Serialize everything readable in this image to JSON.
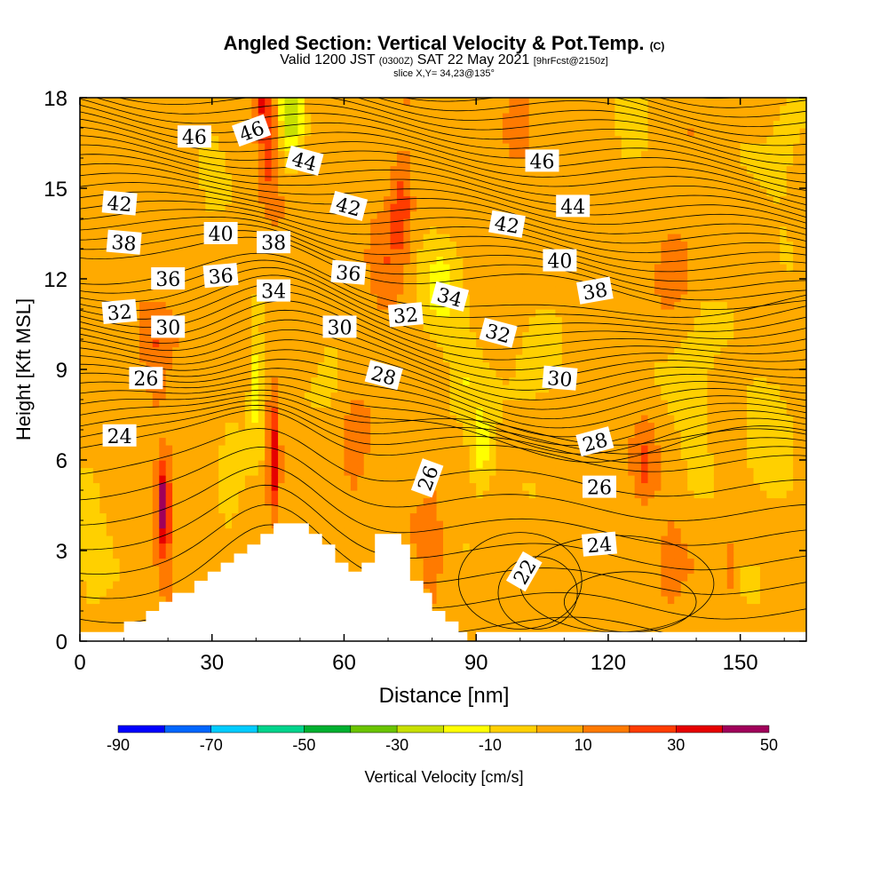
{
  "title": {
    "main": "Angled Section: Vertical Velocity & Pot.Temp.",
    "copyright": "(C)",
    "valid_prefix": "Valid 1200 JST",
    "valid_utc": "(0300Z)",
    "valid_date": "SAT 22 May 2021",
    "forecast": "[9hrFcst@2150z]",
    "slice": "slice X,Y= 34,23@135°"
  },
  "chart_data": {
    "type": "heatmap",
    "xlabel": "Distance [nm]",
    "ylabel": "Height [Kft MSL]",
    "xlim": [
      0,
      165
    ],
    "ylim": [
      0,
      18
    ],
    "xticks": [
      0,
      30,
      60,
      90,
      120,
      150
    ],
    "yticks": [
      0,
      3,
      6,
      9,
      12,
      15,
      18
    ],
    "colorbar": {
      "label": "Vertical Velocity [cm/s]",
      "ticks": [
        -90,
        -70,
        -50,
        -30,
        -10,
        10,
        30,
        50
      ],
      "boundaries": [
        -90,
        -80,
        -70,
        -60,
        -50,
        -40,
        -30,
        -20,
        -10,
        0,
        10,
        20,
        30,
        40,
        50
      ],
      "colors": [
        "#0000ff",
        "#0066ff",
        "#00ccff",
        "#00d48c",
        "#00b030",
        "#6ac400",
        "#c8e000",
        "#ffff00",
        "#ffd000",
        "#ffaa00",
        "#ff7a00",
        "#ff3c00",
        "#e60000",
        "#a0005a",
        "#5a00a0"
      ]
    },
    "terrain": [
      [
        0,
        0.3
      ],
      [
        10,
        0.3
      ],
      [
        10,
        0.65
      ],
      [
        15,
        0.65
      ],
      [
        15,
        1.0
      ],
      [
        18,
        1.0
      ],
      [
        18,
        1.3
      ],
      [
        21,
        1.3
      ],
      [
        21,
        1.6
      ],
      [
        26,
        1.6
      ],
      [
        26,
        2.0
      ],
      [
        29,
        2.0
      ],
      [
        29,
        2.3
      ],
      [
        32,
        2.3
      ],
      [
        32,
        2.6
      ],
      [
        35,
        2.6
      ],
      [
        35,
        2.9
      ],
      [
        38,
        2.9
      ],
      [
        38,
        3.2
      ],
      [
        41,
        3.2
      ],
      [
        41,
        3.55
      ],
      [
        44,
        3.55
      ],
      [
        44,
        3.9
      ],
      [
        52,
        3.9
      ],
      [
        52,
        3.55
      ],
      [
        55,
        3.55
      ],
      [
        55,
        3.2
      ],
      [
        58,
        3.2
      ],
      [
        58,
        2.6
      ],
      [
        61,
        2.6
      ],
      [
        61,
        2.3
      ],
      [
        64,
        2.3
      ],
      [
        64,
        2.6
      ],
      [
        67,
        2.6
      ],
      [
        67,
        3.55
      ],
      [
        73,
        3.55
      ],
      [
        73,
        3.2
      ],
      [
        75,
        3.2
      ],
      [
        75,
        2.0
      ],
      [
        78,
        2.0
      ],
      [
        78,
        1.6
      ],
      [
        80,
        1.6
      ],
      [
        80,
        1.0
      ],
      [
        83,
        1.0
      ],
      [
        83,
        0.65
      ],
      [
        86,
        0.65
      ],
      [
        86,
        0.3
      ],
      [
        88,
        0.3
      ],
      [
        88,
        0
      ]
    ],
    "isentrope_labels": [
      {
        "x": 26,
        "y": 16.7,
        "label": "46",
        "rot": 0
      },
      {
        "x": 39,
        "y": 16.9,
        "label": "46",
        "rot": -20
      },
      {
        "x": 51,
        "y": 15.9,
        "label": "44",
        "rot": 15
      },
      {
        "x": 105,
        "y": 15.9,
        "label": "46",
        "rot": 0
      },
      {
        "x": 112,
        "y": 14.4,
        "label": "44",
        "rot": 0
      },
      {
        "x": 9,
        "y": 14.5,
        "label": "42",
        "rot": 5
      },
      {
        "x": 61,
        "y": 14.4,
        "label": "42",
        "rot": 15
      },
      {
        "x": 97,
        "y": 13.8,
        "label": "42",
        "rot": 10
      },
      {
        "x": 32,
        "y": 13.5,
        "label": "40",
        "rot": 0
      },
      {
        "x": 109,
        "y": 12.6,
        "label": "40",
        "rot": 0
      },
      {
        "x": 10,
        "y": 13.2,
        "label": "38",
        "rot": 5
      },
      {
        "x": 44,
        "y": 13.2,
        "label": "38",
        "rot": 0
      },
      {
        "x": 117,
        "y": 11.6,
        "label": "38",
        "rot": -10
      },
      {
        "x": 20,
        "y": 12.0,
        "label": "36",
        "rot": 0
      },
      {
        "x": 32,
        "y": 12.1,
        "label": "36",
        "rot": -5
      },
      {
        "x": 61,
        "y": 12.2,
        "label": "36",
        "rot": 5
      },
      {
        "x": 44,
        "y": 11.6,
        "label": "34",
        "rot": 0
      },
      {
        "x": 84,
        "y": 11.4,
        "label": "34",
        "rot": 15
      },
      {
        "x": 9,
        "y": 10.9,
        "label": "32",
        "rot": -5
      },
      {
        "x": 74,
        "y": 10.8,
        "label": "32",
        "rot": -5
      },
      {
        "x": 95,
        "y": 10.2,
        "label": "32",
        "rot": 15
      },
      {
        "x": 20,
        "y": 10.4,
        "label": "30",
        "rot": 0
      },
      {
        "x": 59,
        "y": 10.4,
        "label": "30",
        "rot": 0
      },
      {
        "x": 109,
        "y": 8.7,
        "label": "30",
        "rot": 5
      },
      {
        "x": 15,
        "y": 8.7,
        "label": "26",
        "rot": 0
      },
      {
        "x": 69,
        "y": 8.8,
        "label": "28",
        "rot": 15
      },
      {
        "x": 117,
        "y": 6.6,
        "label": "28",
        "rot": -15
      },
      {
        "x": 9,
        "y": 6.8,
        "label": "24",
        "rot": 0
      },
      {
        "x": 79,
        "y": 5.4,
        "label": "26",
        "rot": -70
      },
      {
        "x": 118,
        "y": 5.1,
        "label": "26",
        "rot": 0
      },
      {
        "x": 118,
        "y": 3.2,
        "label": "24",
        "rot": -5
      },
      {
        "x": 101,
        "y": 2.3,
        "label": "22",
        "rot": -60
      }
    ]
  }
}
